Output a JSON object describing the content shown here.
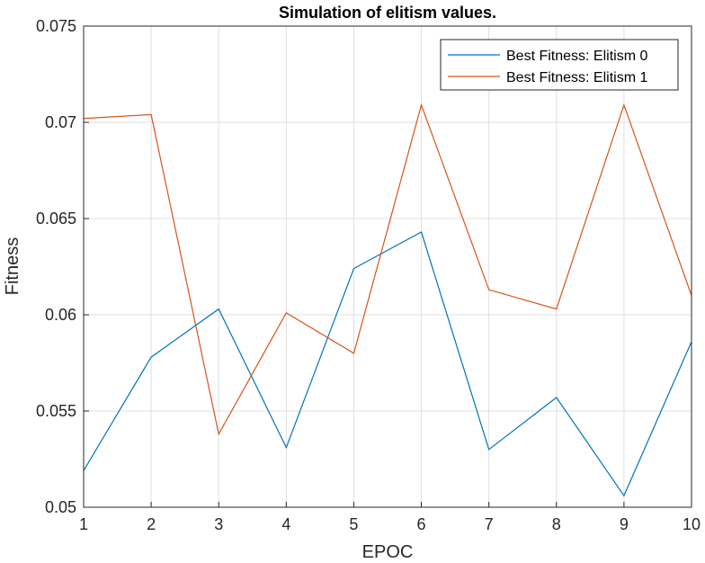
{
  "chart_data": {
    "type": "line",
    "title": "Simulation of elitism values.",
    "xlabel": "EPOC",
    "ylabel": "Fitness",
    "xlim": [
      1,
      10
    ],
    "ylim": [
      0.05,
      0.075
    ],
    "xticks": [
      1,
      2,
      3,
      4,
      5,
      6,
      7,
      8,
      9,
      10
    ],
    "yticks": [
      0.05,
      0.055,
      0.06,
      0.065,
      0.07,
      0.075
    ],
    "ytick_labels": [
      "0.05",
      "0.055",
      "0.06",
      "0.065",
      "0.07",
      "0.075"
    ],
    "grid": true,
    "legend_position": "top-right",
    "x": [
      1,
      2,
      3,
      4,
      5,
      6,
      7,
      8,
      9,
      10
    ],
    "series": [
      {
        "name": "Best Fitness: Elitism 0",
        "color": "#0072BD",
        "values": [
          0.0519,
          0.0578,
          0.0603,
          0.0531,
          0.0624,
          0.0643,
          0.053,
          0.0557,
          0.0506,
          0.0586
        ]
      },
      {
        "name": "Best Fitness: Elitism 1",
        "color": "#D95319",
        "values": [
          0.0702,
          0.0704,
          0.0538,
          0.0601,
          0.058,
          0.0709,
          0.0613,
          0.0603,
          0.0709,
          0.061
        ]
      }
    ]
  }
}
